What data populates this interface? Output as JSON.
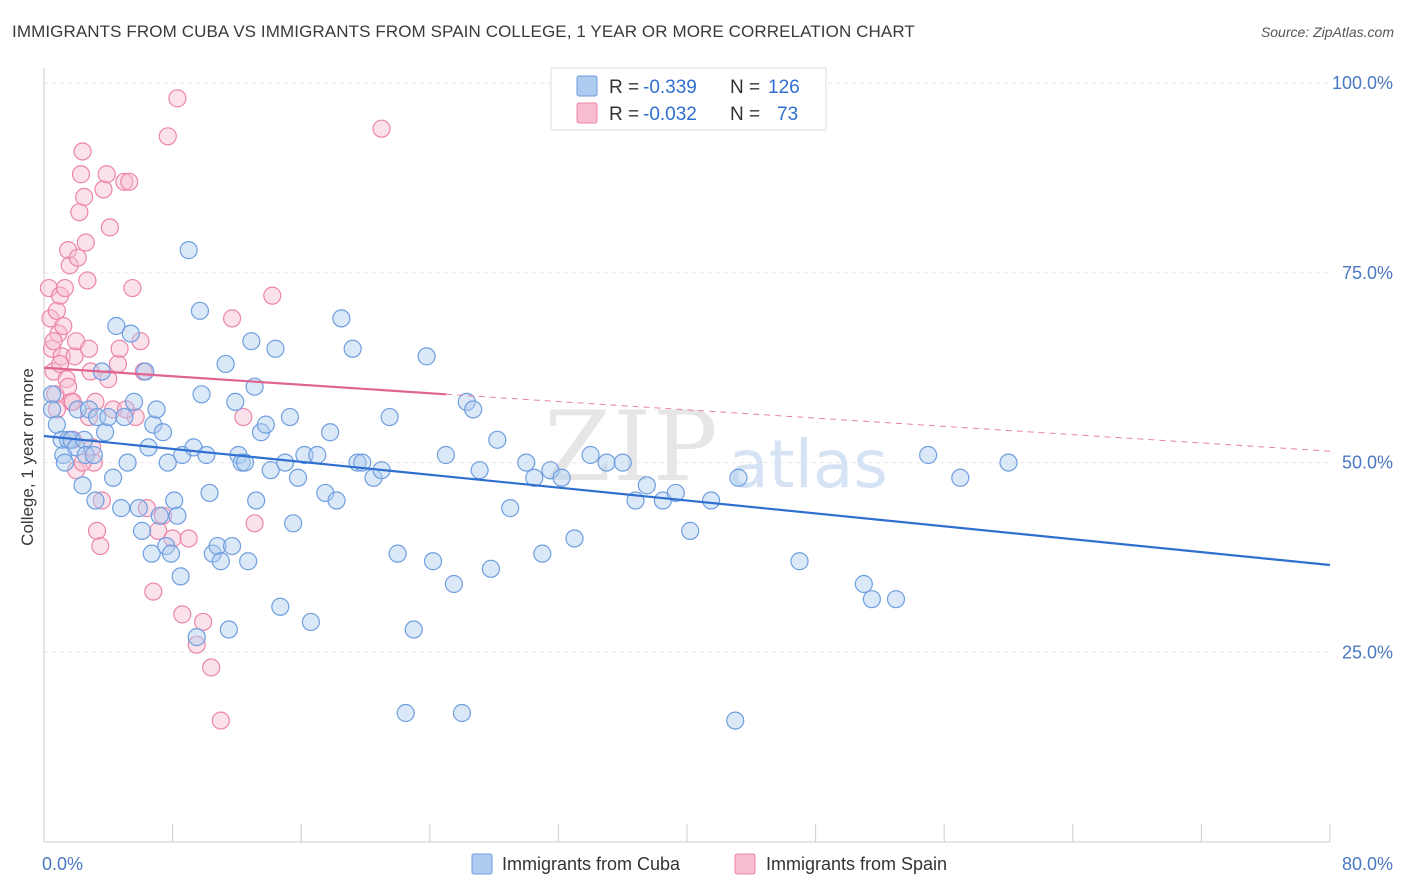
{
  "title": "IMMIGRANTS FROM CUBA VS IMMIGRANTS FROM SPAIN COLLEGE, 1 YEAR OR MORE CORRELATION CHART",
  "source": "Source: ZipAtlas.com",
  "watermark": {
    "zip": "ZIP",
    "atlas": "atlas"
  },
  "colors": {
    "cuba_fill": "#aecbf0",
    "cuba_stroke": "#6f9ee0",
    "cuba_line": "#2f6fd0",
    "spain_fill": "#f7bcd0",
    "spain_stroke": "#ec86a8",
    "spain_line": "#e0648f",
    "grid": "#e6e6e6",
    "axis_text": "#4a78c2"
  },
  "chart_data": {
    "type": "scatter",
    "title": "IMMIGRANTS FROM CUBA VS IMMIGRANTS FROM SPAIN COLLEGE, 1 YEAR OR MORE CORRELATION CHART",
    "xlabel": "",
    "ylabel": "College, 1 year or more",
    "x_tick_labels": {
      "min": "0.0%",
      "max": "80.0%"
    },
    "y_tick_labels": [
      "100.0%",
      "75.0%",
      "50.0%",
      "25.0%"
    ],
    "y_tick_values": [
      100,
      75,
      50,
      25
    ],
    "xlim": [
      0,
      80
    ],
    "ylim": [
      0,
      102
    ],
    "grid": true,
    "legend_position": "top-center",
    "legend": [
      {
        "r_label": "R =",
        "r_value": "-0.339",
        "n_label": "N =",
        "n_value": "126"
      },
      {
        "r_label": "R =",
        "r_value": "-0.032",
        "n_label": "N =",
        "n_value": "73"
      }
    ],
    "series": [
      {
        "name": "Immigrants from Cuba",
        "trend": {
          "x": [
            0,
            80
          ],
          "y": [
            53.5,
            36.5
          ]
        },
        "points": [
          [
            0.5,
            59
          ],
          [
            0.5,
            57
          ],
          [
            0.8,
            55
          ],
          [
            1.1,
            53
          ],
          [
            1.2,
            51
          ],
          [
            1.3,
            50
          ],
          [
            1.5,
            53
          ],
          [
            1.7,
            53
          ],
          [
            2.0,
            52
          ],
          [
            2.1,
            57
          ],
          [
            2.4,
            47
          ],
          [
            2.5,
            53
          ],
          [
            2.6,
            51
          ],
          [
            2.8,
            57
          ],
          [
            3.1,
            51
          ],
          [
            3.2,
            45
          ],
          [
            3.3,
            56
          ],
          [
            3.6,
            62
          ],
          [
            3.8,
            54
          ],
          [
            4.0,
            56
          ],
          [
            4.3,
            48
          ],
          [
            4.5,
            68
          ],
          [
            4.8,
            44
          ],
          [
            5.0,
            56
          ],
          [
            5.2,
            50
          ],
          [
            5.4,
            67
          ],
          [
            5.6,
            58
          ],
          [
            5.9,
            44
          ],
          [
            6.1,
            41
          ],
          [
            6.3,
            62
          ],
          [
            6.5,
            52
          ],
          [
            6.7,
            38
          ],
          [
            6.8,
            55
          ],
          [
            7.0,
            57
          ],
          [
            7.2,
            43
          ],
          [
            7.4,
            54
          ],
          [
            7.6,
            39
          ],
          [
            7.7,
            50
          ],
          [
            7.9,
            38
          ],
          [
            8.1,
            45
          ],
          [
            8.3,
            43
          ],
          [
            8.5,
            35
          ],
          [
            8.6,
            51
          ],
          [
            9.0,
            78
          ],
          [
            9.3,
            52
          ],
          [
            9.5,
            27
          ],
          [
            9.7,
            70
          ],
          [
            9.8,
            59
          ],
          [
            10.1,
            51
          ],
          [
            10.3,
            46
          ],
          [
            10.5,
            38
          ],
          [
            10.8,
            39
          ],
          [
            11.0,
            37
          ],
          [
            11.3,
            63
          ],
          [
            11.5,
            28
          ],
          [
            11.7,
            39
          ],
          [
            11.9,
            58
          ],
          [
            12.1,
            51
          ],
          [
            12.3,
            50
          ],
          [
            12.5,
            50
          ],
          [
            12.7,
            37
          ],
          [
            12.9,
            66
          ],
          [
            13.1,
            60
          ],
          [
            13.2,
            45
          ],
          [
            13.5,
            54
          ],
          [
            13.8,
            55
          ],
          [
            14.1,
            49
          ],
          [
            14.4,
            65
          ],
          [
            14.7,
            31
          ],
          [
            15.0,
            50
          ],
          [
            15.3,
            56
          ],
          [
            15.5,
            42
          ],
          [
            15.8,
            48
          ],
          [
            16.2,
            51
          ],
          [
            16.6,
            29
          ],
          [
            17.0,
            51
          ],
          [
            17.5,
            46
          ],
          [
            17.8,
            54
          ],
          [
            18.2,
            45
          ],
          [
            18.5,
            69
          ],
          [
            19.2,
            65
          ],
          [
            19.5,
            50
          ],
          [
            19.8,
            50
          ],
          [
            20.5,
            48
          ],
          [
            21.0,
            49
          ],
          [
            21.5,
            56
          ],
          [
            22.0,
            38
          ],
          [
            22.5,
            17
          ],
          [
            23.0,
            28
          ],
          [
            23.8,
            64
          ],
          [
            24.2,
            37
          ],
          [
            25.0,
            51
          ],
          [
            25.5,
            34
          ],
          [
            26.0,
            17
          ],
          [
            26.3,
            58
          ],
          [
            26.7,
            57
          ],
          [
            27.1,
            49
          ],
          [
            27.8,
            36
          ],
          [
            28.2,
            53
          ],
          [
            29.0,
            44
          ],
          [
            30.0,
            50
          ],
          [
            30.5,
            48
          ],
          [
            31.0,
            38
          ],
          [
            31.5,
            49
          ],
          [
            32.2,
            48
          ],
          [
            33.0,
            40
          ],
          [
            34.0,
            51
          ],
          [
            35.0,
            50
          ],
          [
            36.0,
            50
          ],
          [
            36.8,
            45
          ],
          [
            37.5,
            47
          ],
          [
            38.5,
            45
          ],
          [
            39.3,
            46
          ],
          [
            40.2,
            41
          ],
          [
            41.5,
            45
          ],
          [
            43.0,
            16
          ],
          [
            43.2,
            48
          ],
          [
            47.0,
            37
          ],
          [
            51.0,
            34
          ],
          [
            51.5,
            32
          ],
          [
            53.0,
            32
          ],
          [
            55.0,
            51
          ],
          [
            57.0,
            48
          ],
          [
            60.0,
            50
          ]
        ]
      },
      {
        "name": "Immigrants from Spain",
        "trend": {
          "x": [
            0,
            25
          ],
          "y": [
            62.5,
            59.0
          ],
          "dashed_to": {
            "x": 80,
            "y": 51.5
          }
        },
        "points": [
          [
            0.3,
            73
          ],
          [
            0.4,
            69
          ],
          [
            0.5,
            65
          ],
          [
            0.6,
            62
          ],
          [
            0.7,
            59
          ],
          [
            0.8,
            70
          ],
          [
            0.9,
            67
          ],
          [
            1.0,
            72
          ],
          [
            1.1,
            64
          ],
          [
            1.2,
            68
          ],
          [
            1.3,
            73
          ],
          [
            1.4,
            61
          ],
          [
            1.5,
            78
          ],
          [
            1.6,
            76
          ],
          [
            1.7,
            58
          ],
          [
            1.8,
            53
          ],
          [
            1.9,
            64
          ],
          [
            2.0,
            66
          ],
          [
            2.1,
            77
          ],
          [
            2.2,
            83
          ],
          [
            2.3,
            88
          ],
          [
            2.4,
            91
          ],
          [
            2.5,
            85
          ],
          [
            2.6,
            79
          ],
          [
            2.7,
            74
          ],
          [
            2.8,
            65
          ],
          [
            2.9,
            62
          ],
          [
            3.0,
            52
          ],
          [
            3.1,
            50
          ],
          [
            3.3,
            41
          ],
          [
            3.5,
            39
          ],
          [
            3.7,
            86
          ],
          [
            3.9,
            88
          ],
          [
            4.1,
            81
          ],
          [
            4.3,
            57
          ],
          [
            4.6,
            63
          ],
          [
            5.0,
            87
          ],
          [
            5.3,
            87
          ],
          [
            5.5,
            73
          ],
          [
            5.7,
            56
          ],
          [
            6.0,
            66
          ],
          [
            6.4,
            44
          ],
          [
            6.8,
            33
          ],
          [
            7.1,
            41
          ],
          [
            7.4,
            43
          ],
          [
            7.7,
            93
          ],
          [
            8.0,
            40
          ],
          [
            8.3,
            98
          ],
          [
            8.6,
            30
          ],
          [
            9.0,
            40
          ],
          [
            9.5,
            26
          ],
          [
            9.9,
            29
          ],
          [
            10.4,
            23
          ],
          [
            11.0,
            16
          ],
          [
            11.7,
            69
          ],
          [
            12.4,
            56
          ],
          [
            13.1,
            42
          ],
          [
            14.2,
            72
          ],
          [
            21.0,
            94
          ],
          [
            0.8,
            57
          ],
          [
            1.5,
            60
          ],
          [
            2.0,
            49
          ],
          [
            2.8,
            56
          ],
          [
            3.6,
            45
          ],
          [
            4.7,
            65
          ],
          [
            5.1,
            57
          ],
          [
            6.2,
            62
          ],
          [
            1.0,
            63
          ],
          [
            1.8,
            58
          ],
          [
            0.6,
            66
          ],
          [
            2.4,
            50
          ],
          [
            3.2,
            58
          ],
          [
            4.0,
            61
          ]
        ]
      }
    ]
  },
  "bottom_legend": [
    {
      "label": "Immigrants from Cuba"
    },
    {
      "label": "Immigrants from Spain"
    }
  ]
}
